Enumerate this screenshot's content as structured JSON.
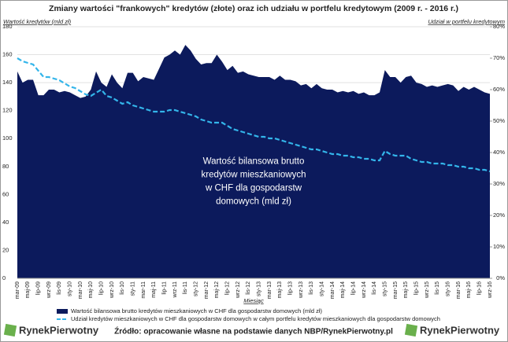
{
  "chart_data": {
    "type": "area_line",
    "title": "Zmiany wartości \"frankowych\" kredytów (złote) oraz ich udziału w portfelu kredytowym (2009 r. - 2016 r.)",
    "y_label": "Wartość kredytów (mld zł)",
    "y2_label": "Udział w portfelu kredytowym",
    "x_label": "Miesiąc",
    "annotation": [
      "Wartość bilansowa brutto",
      "kredytów mieszkaniowych",
      "w CHF dla gospodarstw",
      "domowych (mld zł)"
    ],
    "source": "Źródło: opracowanie własne na podstawie danych NBP/RynekPierwotny.pl",
    "logo": "RynekPierwotny",
    "categories": [
      "mar-09",
      null,
      "maj-09",
      null,
      "lip-09",
      null,
      "wrz-09",
      null,
      "lis-09",
      null,
      "sty-10",
      null,
      "mar-10",
      null,
      "maj-10",
      null,
      "lip-10",
      null,
      "wrz-10",
      null,
      "lis-10",
      null,
      "sty-11",
      null,
      "mar-11",
      null,
      "maj-11",
      null,
      "lip-11",
      null,
      "wrz-11",
      null,
      "lis-11",
      null,
      "sty-12",
      null,
      "mar-12",
      null,
      "maj-12",
      null,
      "lip-12",
      null,
      "wrz-12",
      null,
      "lis-12",
      null,
      "sty-13",
      null,
      "mar-13",
      null,
      "maj-13",
      null,
      "lip-13",
      null,
      "wrz-13",
      null,
      "lis-13",
      null,
      "sty-14",
      null,
      "mar-14",
      null,
      "maj-14",
      null,
      "lip-14",
      null,
      "wrz-14",
      null,
      "lis-14",
      null,
      "sty-15",
      null,
      "mar-15",
      null,
      "maj-15",
      null,
      "lip-15",
      null,
      "wrz-15",
      null,
      "lis-15",
      null,
      "sty-16",
      null,
      "mar-16",
      null,
      "maj-16",
      null,
      "lip-16",
      null,
      "wrz-16"
    ],
    "series": [
      {
        "name": "Wartość bilansowa brutto kredytów mieszkaniowych w CHF dla gospodarstw domowych (mld zł)",
        "color": "#0c1a5c",
        "kind": "area",
        "values": [
          148,
          140,
          142,
          142,
          131,
          131,
          135,
          135,
          133,
          134,
          133,
          131,
          129,
          130,
          135,
          148,
          140,
          137,
          146,
          140,
          136,
          147,
          147,
          141,
          144,
          143,
          142,
          150,
          158,
          160,
          163,
          160,
          167,
          163,
          157,
          153,
          154,
          154,
          160,
          155,
          149,
          152,
          147,
          148,
          146,
          145,
          144,
          144,
          144,
          142,
          145,
          142,
          142,
          141,
          138,
          139,
          136,
          139,
          136,
          135,
          135,
          133,
          134,
          133,
          134,
          132,
          133,
          131,
          131,
          133,
          149,
          144,
          144,
          140,
          144,
          145,
          140,
          139,
          137,
          138,
          137,
          138,
          139,
          138,
          134,
          137,
          135,
          137,
          135,
          133,
          132
        ]
      },
      {
        "name": "Udział kredytów mieszkaniowych w CHF dla gospodarstw domowych w całym portfelu kredytów mieszkaniowych dla gospodarstw domowych",
        "color": "#33b5ea",
        "kind": "line",
        "axis": "y2",
        "values": [
          70,
          69,
          68.5,
          68,
          66,
          64,
          64,
          63.5,
          63,
          62,
          61,
          60.5,
          59.5,
          58.5,
          58,
          59,
          60,
          58,
          57.5,
          56.5,
          55.5,
          56,
          55,
          54.5,
          54,
          53.5,
          53,
          53,
          53,
          53.5,
          53.5,
          53,
          52.5,
          52,
          51.5,
          50.5,
          50,
          49.5,
          49.5,
          49.5,
          48.5,
          47.5,
          47,
          46.5,
          46,
          45.5,
          45,
          45,
          44.5,
          44.5,
          44,
          43.5,
          43,
          42.5,
          42,
          41.5,
          41,
          41,
          40.5,
          40,
          39.5,
          39.5,
          39,
          39,
          38.5,
          38.5,
          38,
          38,
          37.5,
          37.5,
          40.5,
          39.5,
          39,
          39,
          39,
          38,
          37.5,
          37,
          37,
          36.5,
          36.5,
          36.5,
          36,
          36,
          35.5,
          35.5,
          35,
          35,
          34.5,
          34.5,
          34
        ]
      }
    ],
    "ylim": [
      0,
      180
    ],
    "yticks": [
      0,
      20,
      40,
      60,
      80,
      100,
      120,
      140,
      160,
      180
    ],
    "y2lim": [
      0,
      80
    ],
    "y2ticks": [
      {
        "value": 0,
        "label": "0%"
      },
      {
        "value": 10,
        "label": "10%"
      },
      {
        "value": 20,
        "label": "20%"
      },
      {
        "value": 30,
        "label": "30%"
      },
      {
        "value": 40,
        "label": "40%"
      },
      {
        "value": 50,
        "label": "50%"
      },
      {
        "value": 60,
        "label": "60%"
      },
      {
        "value": 70,
        "label": "70%"
      },
      {
        "value": 80,
        "label": "80%"
      }
    ],
    "grid": true
  }
}
